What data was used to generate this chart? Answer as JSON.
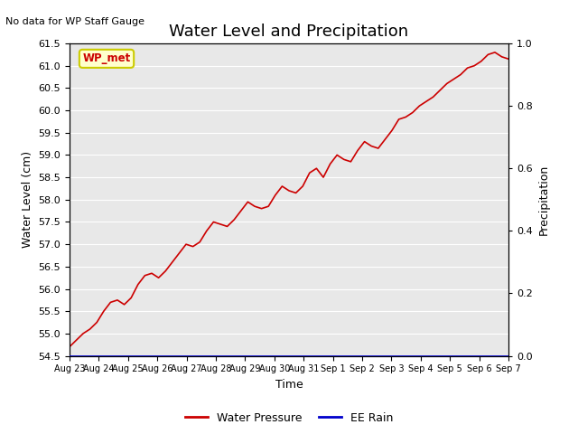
{
  "title": "Water Level and Precipitation",
  "top_left_text": "No data for WP Staff Gauge",
  "legend_label": "WP_met",
  "ylabel_left": "Water Level (cm)",
  "ylabel_right": "Precipitation",
  "xlabel": "Time",
  "ylim_left": [
    54.5,
    61.5
  ],
  "ylim_right": [
    0.0,
    1.0
  ],
  "yticks_left": [
    54.5,
    55.0,
    55.5,
    56.0,
    56.5,
    57.0,
    57.5,
    58.0,
    58.5,
    59.0,
    59.5,
    60.0,
    60.5,
    61.0,
    61.5
  ],
  "yticks_right": [
    0.0,
    0.2,
    0.4,
    0.6,
    0.8,
    1.0
  ],
  "xtick_labels": [
    "Aug 23",
    "Aug 24",
    "Aug 25",
    "Aug 26",
    "Aug 27",
    "Aug 28",
    "Aug 29",
    "Aug 30",
    "Aug 31",
    "Sep 1",
    "Sep 2",
    "Sep 3",
    "Sep 4",
    "Sep 5",
    "Sep 6",
    "Sep 7"
  ],
  "line_color_water": "#cc0000",
  "line_color_rain": "#0000cc",
  "background_color": "#e8e8e8",
  "legend_box_facecolor": "#ffffcc",
  "legend_box_edgecolor": "#cccc00",
  "title_fontsize": 13,
  "axis_label_fontsize": 9,
  "tick_label_fontsize": 8,
  "water_pressure_data": [
    54.7,
    54.85,
    55.0,
    55.1,
    55.25,
    55.5,
    55.7,
    55.75,
    55.65,
    55.8,
    56.1,
    56.3,
    56.35,
    56.25,
    56.4,
    56.6,
    56.8,
    57.0,
    56.95,
    57.05,
    57.3,
    57.5,
    57.45,
    57.4,
    57.55,
    57.75,
    57.95,
    57.85,
    57.8,
    57.85,
    58.1,
    58.3,
    58.2,
    58.15,
    58.3,
    58.6,
    58.7,
    58.5,
    58.8,
    59.0,
    58.9,
    58.85,
    59.1,
    59.3,
    59.2,
    59.15,
    59.35,
    59.55,
    59.8,
    59.85,
    59.95,
    60.1,
    60.2,
    60.3,
    60.45,
    60.6,
    60.7,
    60.8,
    60.95,
    61.0,
    61.1,
    61.25,
    61.3,
    61.2,
    61.15
  ]
}
